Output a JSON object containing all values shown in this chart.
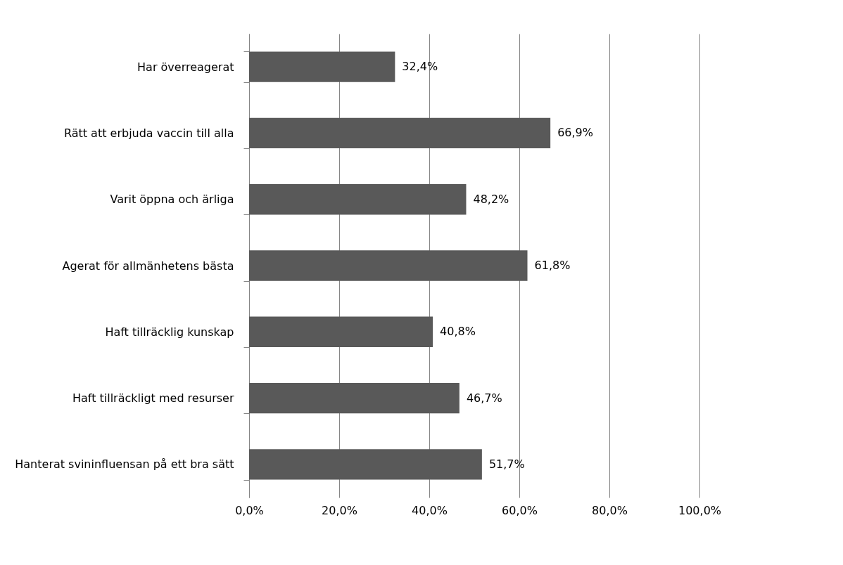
{
  "chart_data": {
    "type": "bar",
    "orientation": "horizontal",
    "categories": [
      "Har överreagerat",
      "Rätt att erbjuda vaccin till alla",
      "Varit öppna och ärliga",
      "Agerat för allmänhetens bästa",
      "Haft tillräcklig kunskap",
      "Haft tillräckligt med resurser",
      "Hanterat svininfluensan på ett bra sätt"
    ],
    "values": [
      32.4,
      66.9,
      48.2,
      61.8,
      40.8,
      46.7,
      51.7
    ],
    "value_labels": [
      "32,4%",
      "66,9%",
      "48,2%",
      "61,8%",
      "40,8%",
      "46,7%",
      "51,7%"
    ],
    "color": "#595959",
    "xlim": [
      0,
      100
    ],
    "xticks": [
      {
        "value": 0,
        "label": "0,0%"
      },
      {
        "value": 20,
        "label": "20,0%"
      },
      {
        "value": 40,
        "label": "40,0%"
      },
      {
        "value": 60,
        "label": "60,0%"
      },
      {
        "value": 80,
        "label": "80,0%"
      },
      {
        "value": 100,
        "label": "100,0%"
      }
    ],
    "grid": "x"
  }
}
